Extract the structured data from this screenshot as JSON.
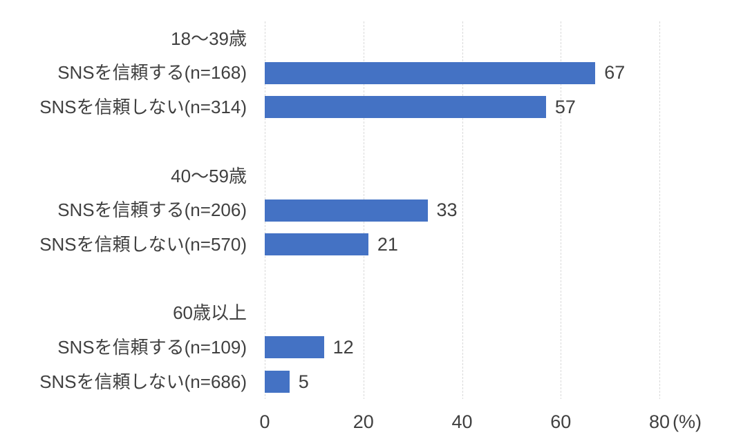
{
  "chart_data": {
    "type": "bar",
    "orientation": "horizontal",
    "title": "",
    "xlabel": "(%)",
    "ylabel": "",
    "xlim": [
      0,
      80
    ],
    "xticks": [
      0,
      20,
      40,
      60,
      80
    ],
    "grid": true,
    "gridline_style": "dotted-vertical",
    "legend": false,
    "data_labels": true,
    "bar_color": "#4472C4",
    "groups": [
      {
        "name": "18〜39歳",
        "items": [
          {
            "category": "SNSを信頼する(n=168)",
            "value": 67
          },
          {
            "category": "SNSを信頼しない(n=314)",
            "value": 57
          }
        ]
      },
      {
        "name": "40〜59歳",
        "items": [
          {
            "category": "SNSを信頼する(n=206)",
            "value": 33
          },
          {
            "category": "SNSを信頼しない(n=570)",
            "value": 21
          }
        ]
      },
      {
        "name": "60歳以上",
        "items": [
          {
            "category": "SNSを信頼する(n=109)",
            "value": 12
          },
          {
            "category": "SNSを信頼しない(n=686)",
            "value": 5
          }
        ]
      }
    ]
  },
  "rows": [
    {
      "type": "header",
      "label": "18〜39歳"
    },
    {
      "type": "bar",
      "label": "SNSを信頼する(n=168)",
      "value": 67
    },
    {
      "type": "bar",
      "label": "SNSを信頼しない(n=314)",
      "value": 57
    },
    {
      "type": "spacer"
    },
    {
      "type": "header",
      "label": "40〜59歳"
    },
    {
      "type": "bar",
      "label": "SNSを信頼する(n=206)",
      "value": 33
    },
    {
      "type": "bar",
      "label": "SNSを信頼しない(n=570)",
      "value": 21
    },
    {
      "type": "spacer"
    },
    {
      "type": "header",
      "label": "60歳以上"
    },
    {
      "type": "bar",
      "label": "SNSを信頼する(n=109)",
      "value": 12
    },
    {
      "type": "bar",
      "label": "SNSを信頼しない(n=686)",
      "value": 5
    }
  ],
  "axis": {
    "ticks": [
      "0",
      "20",
      "40",
      "60",
      "80"
    ],
    "unit": "(%)"
  },
  "colors": {
    "bar": "#4472C4",
    "gridline": "#D9D9D9",
    "text": "#404040",
    "background": "#FFFFFF"
  }
}
